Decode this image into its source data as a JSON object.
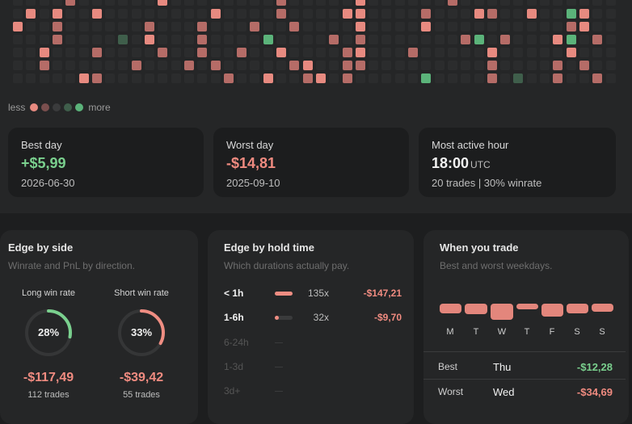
{
  "heatmap": {
    "colors": {
      "empty": "#2b2c2d",
      "loss_strong": "#e78a80",
      "loss_medium": "#b56c67",
      "loss_weak": "#7a4f4e",
      "gain_weak": "#3f5e4b",
      "gain_strong": "#5bb37a"
    },
    "legend": {
      "less": "less",
      "more": "more",
      "swatches": [
        "#e78a80",
        "#7a4f4e",
        "#3a3b3c",
        "#3f5e4b",
        "#5bb37a"
      ]
    }
  },
  "stats": {
    "best_day": {
      "title": "Best day",
      "value": "+$5,99",
      "date": "2026-06-30"
    },
    "worst_day": {
      "title": "Worst day",
      "value": "-$14,81",
      "date": "2025-09-10"
    },
    "active_hour": {
      "title": "Most active hour",
      "value": "18:00",
      "unit": "UTC",
      "detail": "20 trades | 30% winrate"
    }
  },
  "edge_side": {
    "title": "Edge by side",
    "subtitle": "Winrate and PnL by direction.",
    "long": {
      "label": "Long win rate",
      "winrate_pct": 28,
      "winrate_text": "28%",
      "pnl": "-$117,49",
      "trades": "112 trades",
      "color": "#7ad08e"
    },
    "short": {
      "label": "Short win rate",
      "winrate_pct": 33,
      "winrate_text": "33%",
      "pnl": "-$39,42",
      "trades": "55 trades",
      "color": "#ef8d82"
    }
  },
  "edge_hold": {
    "title": "Edge by hold time",
    "subtitle": "Which durations actually pay.",
    "rows": [
      {
        "label": "< 1h",
        "count": "135x",
        "pnl": "-$147,21",
        "fill": 1.0
      },
      {
        "label": "1-6h",
        "count": "32x",
        "pnl": "-$9,70",
        "fill": 0.24
      },
      {
        "label": "6-24h"
      },
      {
        "label": "1-3d"
      },
      {
        "label": "3d+"
      }
    ]
  },
  "weekdays": {
    "title": "When you trade",
    "subtitle": "Best and worst weekdays.",
    "days": [
      "M",
      "T",
      "W",
      "T",
      "F",
      "S",
      "S"
    ],
    "bar_color": "#e3867c",
    "best": {
      "label": "Best",
      "day": "Thu",
      "value": "-$12,28"
    },
    "worst": {
      "label": "Worst",
      "day": "Wed",
      "value": "-$34,69"
    }
  }
}
